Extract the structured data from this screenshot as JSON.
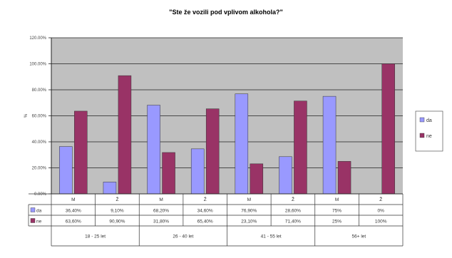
{
  "chart_data": {
    "type": "bar",
    "title": "\"Ste že vozili pod vplivom alkohola?\"",
    "ylabel": "%",
    "ylim": [
      0,
      120
    ],
    "yticks": [
      "0.00%",
      "20.00%",
      "40.00%",
      "60.00%",
      "80.00%",
      "100.00%",
      "120.00%"
    ],
    "grid": true,
    "legend_position": "right",
    "categories": [
      "M",
      "Ž",
      "M",
      "Ž",
      "M",
      "Ž",
      "M",
      "Ž"
    ],
    "groups": [
      "18 - 25 let",
      "26 - 40 let",
      "41 - 55 let",
      "56+ let"
    ],
    "series": [
      {
        "name": "da",
        "color": "#9999ff",
        "values": [
          36.4,
          9.1,
          68.2,
          34.6,
          76.9,
          28.6,
          75,
          0
        ],
        "labels": [
          "36,40%",
          "9,10%",
          "68,20%",
          "34,60%",
          "76,90%",
          "28,60%",
          "75%",
          "0%"
        ]
      },
      {
        "name": "ne",
        "color": "#993366",
        "values": [
          63.6,
          90.9,
          31.8,
          65.4,
          23.1,
          71.4,
          25,
          100
        ],
        "labels": [
          "63,60%",
          "90,90%",
          "31,80%",
          "65,40%",
          "23,10%",
          "71,40%",
          "25%",
          "100%"
        ]
      }
    ]
  }
}
